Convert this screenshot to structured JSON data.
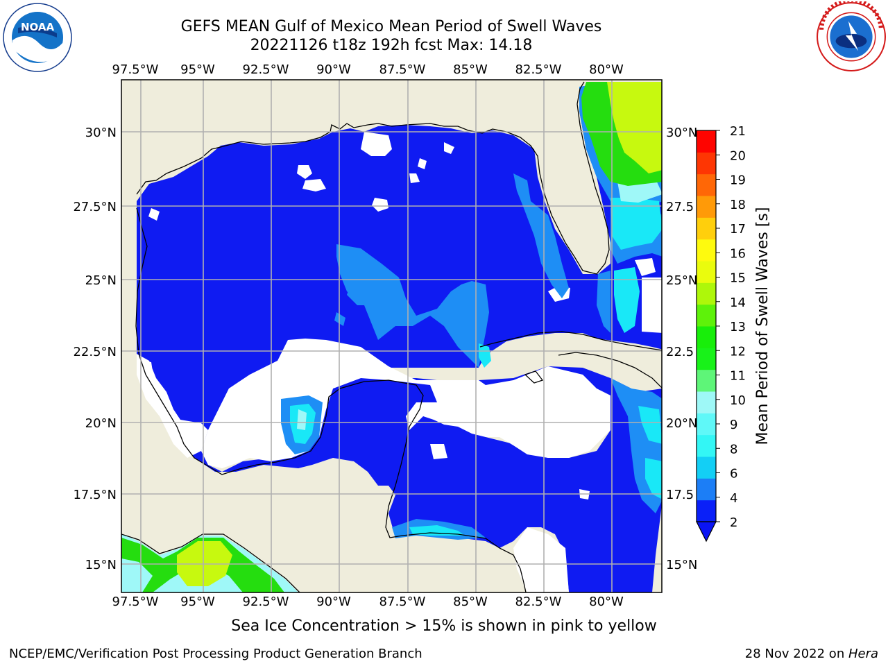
{
  "header": {
    "title_line1": "GEFS MEAN Gulf of Mexico Mean Period of Swell Waves",
    "title_line2": "20221126 t18z 192h fcst   Max: 14.18"
  },
  "logos": {
    "noaa": "noaa-logo",
    "nws": "nws-logo"
  },
  "map": {
    "lon_labels": [
      "97.5°W",
      "95°W",
      "92.5°W",
      "90°W",
      "87.5°W",
      "85°W",
      "82.5°W",
      "80°W"
    ],
    "lat_labels_left": [
      "30°N",
      "27.5°N",
      "25°N",
      "22.5°N",
      "20°N",
      "17.5°N",
      "15°N"
    ],
    "lat_labels_right": [
      "30°N",
      "27.5",
      "25°N",
      "22.5",
      "20°N",
      "17.5",
      "15°N"
    ],
    "colors": {
      "land": "#efeddc",
      "sea_2_4": "#0f1bf2",
      "sea_4_6": "#1e8ef5",
      "sea_6_8": "#19e8f7",
      "sea_8_9": "#9ff8f8",
      "swell_green": "#25dd0f",
      "swell_yellowgreen": "#c7f90f",
      "grid": "#b0b0b0"
    }
  },
  "colorbar": {
    "label": "Mean Period of Swell Waves [s]",
    "ticks": [
      "2",
      "4",
      "6",
      "8",
      "9",
      "10",
      "11",
      "12",
      "13",
      "14",
      "15",
      "16",
      "17",
      "18",
      "19",
      "20",
      "21"
    ],
    "colors": [
      "#0a20f8",
      "#1c7ef6",
      "#13cff5",
      "#33f6f5",
      "#5ff8f8",
      "#9ef8f7",
      "#5ef578",
      "#18f219",
      "#18ee0a",
      "#5ef20a",
      "#aef70a",
      "#eafc0d",
      "#fefa0e",
      "#ffcf0c",
      "#ff9a08",
      "#ff6706",
      "#fe3603",
      "#fe0400"
    ],
    "extend_color": "#0a14f4"
  },
  "note": "Sea Ice Concentration > 15% is shown in pink to yellow",
  "footer": {
    "left": "NCEP/EMC/Verification Post Processing Product Generation Branch",
    "right_prefix": "28 Nov 2022 on ",
    "right_host": "Hera"
  }
}
